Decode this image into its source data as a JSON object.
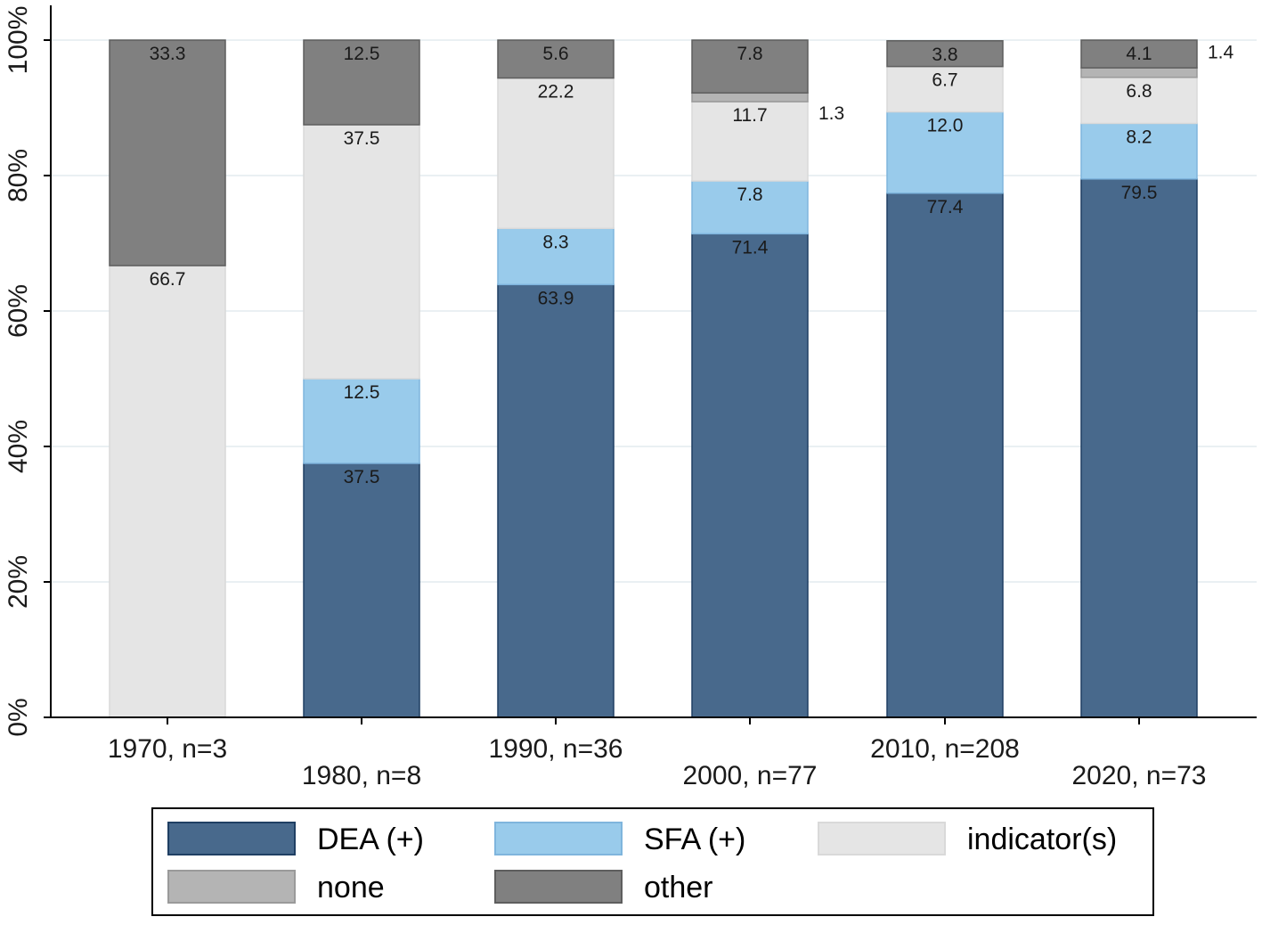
{
  "chart_data": {
    "type": "bar",
    "stacked": true,
    "percent": true,
    "categories": [
      "1970, n=3",
      "1980, n=8",
      "1990, n=36",
      "2000, n=77",
      "2010, n=208",
      "2020, n=73"
    ],
    "series": [
      {
        "name": "DEA (+)",
        "color": "#48698c",
        "values": [
          0,
          37.5,
          63.9,
          71.4,
          77.4,
          79.5
        ],
        "labels": [
          "",
          "37.5",
          "63.9",
          "71.4",
          "77.4",
          "79.5"
        ]
      },
      {
        "name": "SFA (+)",
        "color": "#99cbeb",
        "values": [
          0,
          12.5,
          8.3,
          7.8,
          12.0,
          8.2
        ],
        "labels": [
          "",
          "12.5",
          "8.3",
          "7.8",
          "12.0",
          "8.2"
        ]
      },
      {
        "name": "indicator(s)",
        "color": "#e5e5e5",
        "values": [
          66.7,
          37.5,
          22.2,
          11.7,
          6.7,
          6.8
        ],
        "labels": [
          "66.7",
          "37.5",
          "22.2",
          "11.7",
          "6.7",
          "6.8"
        ]
      },
      {
        "name": "none",
        "color": "#b4b4b4",
        "values": [
          0,
          0,
          0,
          1.3,
          0,
          1.4
        ],
        "labels": [
          "",
          "",
          "",
          "1.3",
          "",
          "1.4"
        ]
      },
      {
        "name": "other",
        "color": "#808080",
        "values": [
          33.3,
          12.5,
          5.6,
          7.8,
          3.8,
          4.1
        ],
        "labels": [
          "33.3",
          "12.5",
          "5.6",
          "7.8",
          "3.8",
          "4.1"
        ]
      }
    ],
    "yticks": [
      "0%",
      "20%",
      "40%",
      "60%",
      "80%",
      "100%"
    ],
    "ylim": [
      0,
      100
    ],
    "xlabel": "",
    "ylabel": "",
    "grid": true,
    "legend_position": "bottom"
  }
}
